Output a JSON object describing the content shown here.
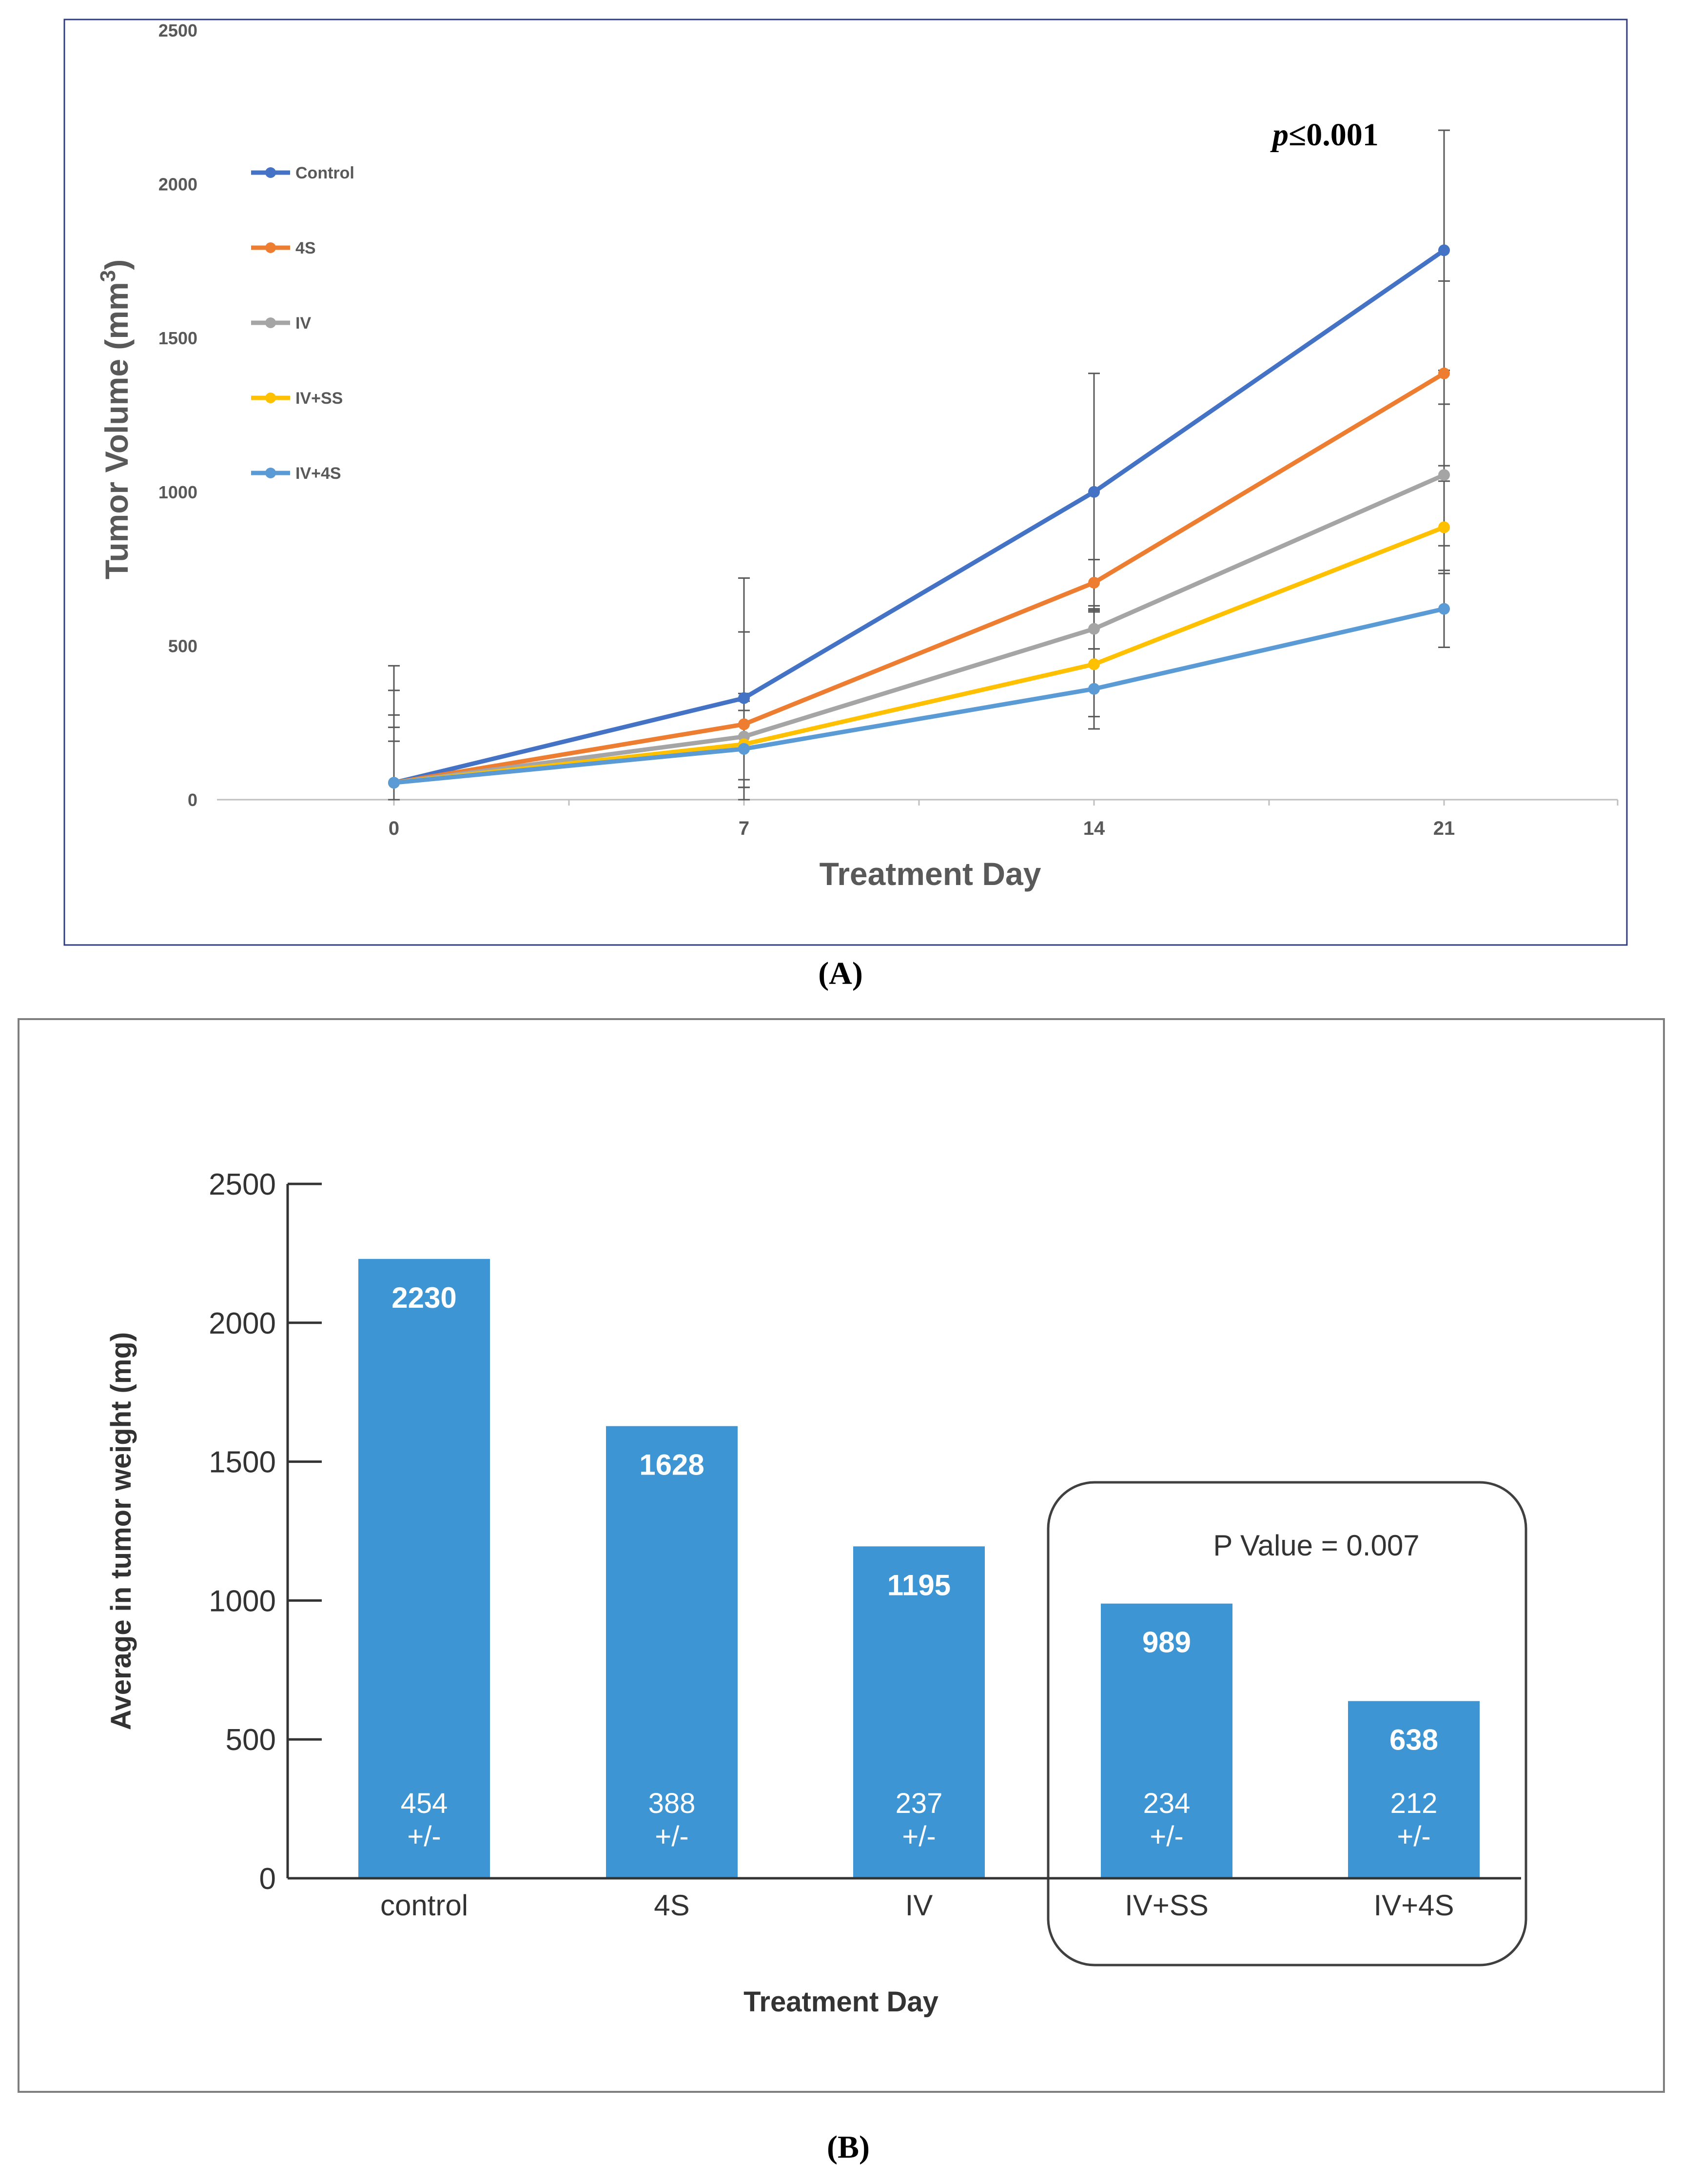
{
  "chart_data": [
    {
      "type": "line",
      "panel_label": "(A)",
      "xlabel": "Treatment Day",
      "ylabel_base": "Tumor Volume (mm",
      "ylabel_sup": "3",
      "ylabel_tail": ")",
      "x": [
        0,
        7,
        14,
        21
      ],
      "x_ticks": [
        "0",
        "7",
        "14",
        "21"
      ],
      "ylim": [
        0,
        2500
      ],
      "y_ticks": [
        "0",
        "500",
        "1000",
        "1500",
        "2000",
        "2500"
      ],
      "annotation_p": "p",
      "annotation_rest": "≤0.001",
      "legend_position": "top-left",
      "series": [
        {
          "name": "Control",
          "color": "#4472c4",
          "values": [
            55,
            330,
            1000,
            1785
          ],
          "errors": [
            380,
            390,
            385,
            390
          ]
        },
        {
          "name": "4S",
          "color": "#ed7d31",
          "values": [
            55,
            245,
            705,
            1385
          ],
          "errors": [
            300,
            300,
            75,
            300
          ]
        },
        {
          "name": "IV",
          "color": "#a5a5a5",
          "values": [
            55,
            205,
            555,
            1055
          ],
          "errors": [
            220,
            140,
            65,
            230
          ]
        },
        {
          "name": "IV+SS",
          "color": "#ffc000",
          "values": [
            55,
            180,
            440,
            885
          ],
          "errors": [
            180,
            140,
            170,
            150
          ]
        },
        {
          "name": "IV+4S",
          "color": "#5b9bd5",
          "values": [
            55,
            165,
            360,
            620
          ],
          "errors": [
            135,
            125,
            130,
            125
          ]
        }
      ]
    },
    {
      "type": "bar",
      "panel_label": "(B)",
      "xlabel": "Treatment Day",
      "ylabel": "Average in tumor weight (mg)",
      "ylim": [
        0,
        2500
      ],
      "y_ticks": [
        "0",
        "500",
        "1000",
        "1500",
        "2000",
        "2500"
      ],
      "categories": [
        "control",
        "4S",
        "IV",
        "IV+SS",
        "IV+4S"
      ],
      "values": [
        2230,
        1628,
        1195,
        989,
        638
      ],
      "value_labels": [
        "2230",
        "1628",
        "1195",
        "989",
        "638"
      ],
      "sd_values": [
        "454",
        "388",
        "237",
        "234",
        "212"
      ],
      "sd_suffix": "+/-",
      "bar_color": "#3d95d3",
      "annotation": "P Value = 0.007"
    }
  ]
}
